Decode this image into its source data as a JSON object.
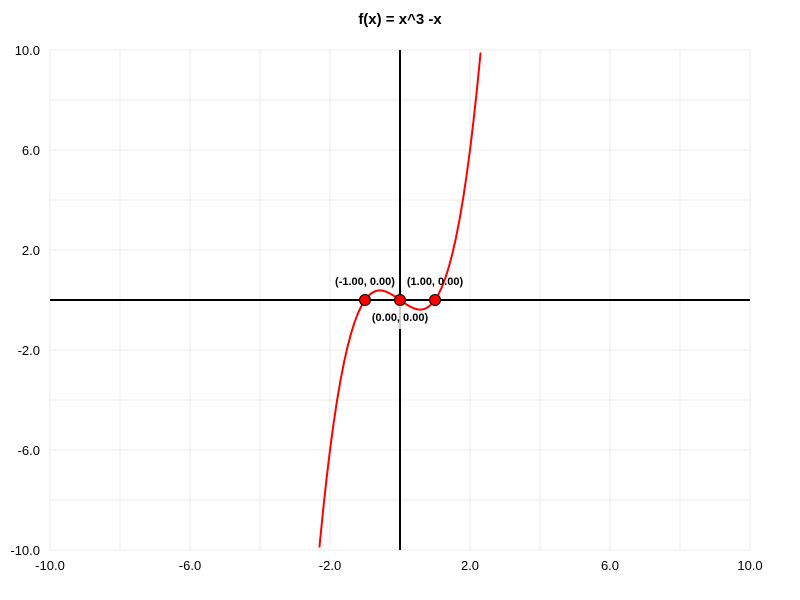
{
  "chart_data": {
    "type": "line",
    "title": "f(x) = x^3 -x",
    "xlabel": "",
    "ylabel": "",
    "xlim": [
      -10,
      10
    ],
    "ylim": [
      -10,
      10
    ],
    "grid": true,
    "x_ticks": [
      -10,
      -6,
      -2,
      2,
      6,
      10
    ],
    "x_tick_labels": [
      "-10.0",
      "-6.0",
      "-2.0",
      "2.0",
      "6.0",
      "10.0"
    ],
    "y_ticks": [
      10,
      6,
      2,
      -2,
      -6,
      -10
    ],
    "y_tick_labels": [
      "10.0",
      "6.0",
      "2.0",
      "-2.0",
      "-6.0",
      "-10.0"
    ],
    "series": [
      {
        "function": "x^3 - x",
        "color": "#ff0000",
        "x": [
          -2.3,
          -2.2,
          -2.1,
          -2.0,
          -1.9,
          -1.8,
          -1.7,
          -1.6,
          -1.5,
          -1.4,
          -1.3,
          -1.2,
          -1.1,
          -1.0,
          -0.9,
          -0.8,
          -0.7,
          -0.6,
          -0.5,
          -0.4,
          -0.3,
          -0.2,
          -0.1,
          0.0,
          0.1,
          0.2,
          0.3,
          0.4,
          0.5,
          0.6,
          0.7,
          0.8,
          0.9,
          1.0,
          1.1,
          1.2,
          1.3,
          1.4,
          1.5,
          1.6,
          1.7,
          1.8,
          1.9,
          2.0,
          2.1,
          2.2,
          2.3
        ],
        "y": [
          -9.867,
          -8.448,
          -7.161,
          -6.0,
          -4.959,
          -4.032,
          -3.213,
          -2.496,
          -1.875,
          -1.344,
          -0.897,
          -0.528,
          -0.231,
          0.0,
          0.171,
          0.288,
          0.357,
          0.384,
          0.375,
          0.336,
          0.273,
          0.192,
          0.099,
          0.0,
          -0.099,
          -0.192,
          -0.273,
          -0.336,
          -0.375,
          -0.384,
          -0.357,
          -0.288,
          -0.171,
          0.0,
          0.231,
          0.528,
          0.897,
          1.344,
          1.875,
          2.496,
          3.213,
          4.032,
          4.959,
          6.0,
          7.161,
          8.448,
          9.867
        ]
      }
    ],
    "points": [
      {
        "x": -1.0,
        "y": 0.0,
        "label": "(-1.00, 0.00)",
        "label_pos": "above"
      },
      {
        "x": 0.0,
        "y": 0.0,
        "label": "(0.00, 0.00)",
        "label_pos": "below"
      },
      {
        "x": 1.0,
        "y": 0.0,
        "label": "(1.00, 0.00)",
        "label_pos": "above"
      }
    ],
    "point_color": "#ff0000",
    "axis_color": "#000000",
    "grid_color": "#ebebeb"
  }
}
